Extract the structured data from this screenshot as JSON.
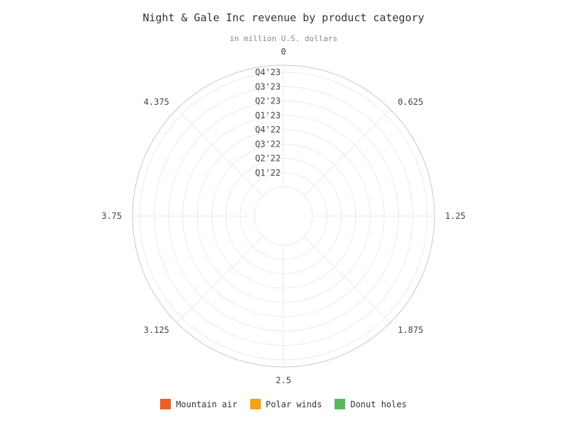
{
  "chart_data": {
    "type": "bar",
    "subtype": "polar-stacked-bar",
    "title": "Night & Gale Inc revenue by product category",
    "subtitle": "in million U.S. dollars",
    "categories": [
      "Q1'22",
      "Q2'22",
      "Q3'22",
      "Q4'22",
      "Q1'23",
      "Q2'23",
      "Q3'23",
      "Q4'23"
    ],
    "angular_ticks": [
      "0",
      "0.625",
      "1.25",
      "1.875",
      "2.5",
      "3.125",
      "3.75",
      "4.375"
    ],
    "angular_range": [
      0,
      5
    ],
    "series": [
      {
        "name": "Mountain air",
        "color": "#e8602c",
        "values": [
          null,
          null,
          null,
          null,
          null,
          null,
          null,
          null
        ]
      },
      {
        "name": "Polar winds",
        "color": "#f4a21c",
        "values": [
          null,
          null,
          null,
          null,
          null,
          null,
          null,
          null
        ]
      },
      {
        "name": "Donut holes",
        "color": "#5cb85c",
        "values": [
          null,
          null,
          null,
          null,
          null,
          null,
          null,
          null
        ]
      }
    ],
    "grid": true,
    "legend_position": "bottom"
  }
}
